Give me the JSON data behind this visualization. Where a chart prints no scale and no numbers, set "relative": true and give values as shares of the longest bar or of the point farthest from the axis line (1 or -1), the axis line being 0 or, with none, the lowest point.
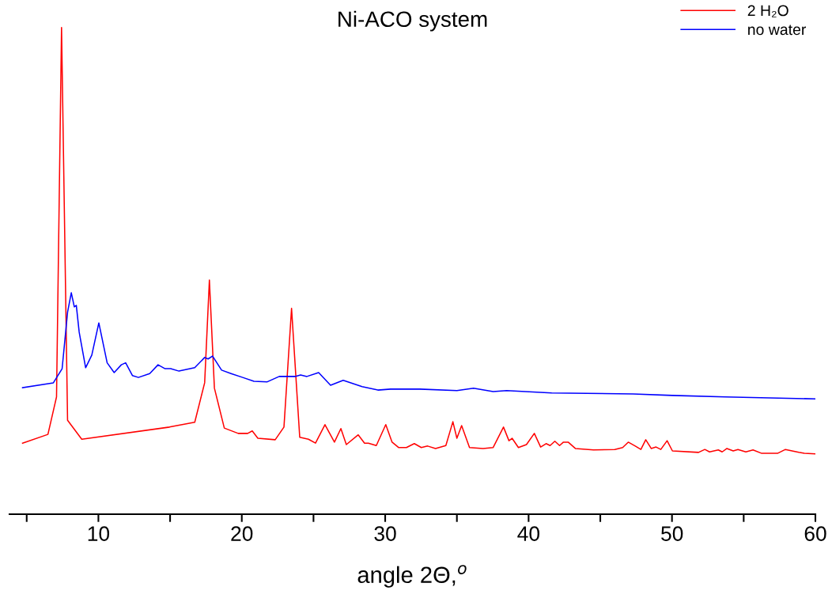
{
  "chart_data": {
    "type": "line",
    "title": "Ni-ACO system",
    "xlabel": "angle 2Θ,$^{o}$",
    "relative": true,
    "legend": "top right",
    "grid": false,
    "tick_labels": "x",
    "xlim": [
      3.8,
      60
    ],
    "xticks": [
      {
        "value": 5,
        "label": null
      },
      10,
      {
        "value": 15,
        "label": null
      },
      20,
      {
        "value": 25,
        "label": null
      },
      30,
      {
        "value": 35,
        "label": null
      },
      40,
      {
        "value": 45,
        "label": null
      },
      50,
      {
        "value": 55,
        "label": null
      },
      60
    ],
    "series": [
      {
        "name": "2 H₂O",
        "color": "#ff0000",
        "x": [
          4.71,
          6.48,
          7.08,
          7.43,
          7.85,
          8.84,
          14.96,
          16.72,
          17.41,
          17.74,
          18.09,
          18.78,
          19.75,
          20.41,
          20.73,
          21.12,
          22.33,
          22.94,
          23.47,
          24.04,
          24.65,
          25.14,
          25.8,
          26.46,
          26.91,
          27.29,
          28.12,
          28.56,
          28.83,
          29.38,
          30.04,
          30.48,
          30.93,
          31.48,
          32.03,
          32.52,
          32.96,
          33.51,
          34.23,
          34.72,
          35.0,
          35.33,
          35.88,
          36.82,
          37.53,
          38.25,
          38.63,
          38.85,
          39.29,
          39.85,
          40.4,
          40.84,
          41.22,
          41.5,
          41.83,
          42.16,
          42.43,
          42.76,
          43.26,
          44.53,
          46.01,
          46.56,
          46.95,
          47.44,
          47.83,
          48.17,
          48.55,
          48.89,
          49.22,
          49.66,
          50.03,
          51.85,
          52.29,
          52.62,
          53.23,
          53.5,
          53.83,
          54.27,
          54.6,
          55.15,
          55.65,
          56.26,
          57.36,
          57.91,
          58.84,
          59.23,
          60
        ],
        "values": [
          0.146,
          0.164,
          0.241,
          1.0,
          0.193,
          0.154,
          0.179,
          0.189,
          0.27,
          0.481,
          0.259,
          0.177,
          0.166,
          0.166,
          0.171,
          0.156,
          0.153,
          0.179,
          0.423,
          0.158,
          0.154,
          0.146,
          0.184,
          0.148,
          0.176,
          0.143,
          0.163,
          0.146,
          0.146,
          0.141,
          0.184,
          0.148,
          0.137,
          0.137,
          0.145,
          0.137,
          0.14,
          0.135,
          0.141,
          0.19,
          0.156,
          0.182,
          0.137,
          0.135,
          0.137,
          0.179,
          0.151,
          0.156,
          0.137,
          0.143,
          0.166,
          0.138,
          0.145,
          0.141,
          0.15,
          0.141,
          0.148,
          0.148,
          0.135,
          0.132,
          0.133,
          0.137,
          0.148,
          0.14,
          0.133,
          0.153,
          0.135,
          0.138,
          0.133,
          0.151,
          0.13,
          0.127,
          0.133,
          0.128,
          0.132,
          0.128,
          0.135,
          0.13,
          0.133,
          0.128,
          0.132,
          0.125,
          0.125,
          0.133,
          0.127,
          0.125,
          0.124
        ]
      },
      {
        "name": "no water",
        "color": "#0000ff",
        "x": [
          4.71,
          6.86,
          7.47,
          7.85,
          8.11,
          8.32,
          8.46,
          8.66,
          9.11,
          9.54,
          10.03,
          10.61,
          11.1,
          11.6,
          11.9,
          12.37,
          12.79,
          13.58,
          14.16,
          14.65,
          15.04,
          15.62,
          16.72,
          17.41,
          17.65,
          17.96,
          18.59,
          19.25,
          20.06,
          20.85,
          21.78,
          22.61,
          23.71,
          24.1,
          24.54,
          25.36,
          26.19,
          27.07,
          28.39,
          29.49,
          30.37,
          32.41,
          35.0,
          36.16,
          37.53,
          38.47,
          41.61,
          47.28,
          50.03,
          53.72,
          60
        ],
        "values": [
          0.26,
          0.27,
          0.299,
          0.415,
          0.455,
          0.426,
          0.429,
          0.374,
          0.301,
          0.327,
          0.393,
          0.311,
          0.291,
          0.307,
          0.311,
          0.285,
          0.281,
          0.289,
          0.307,
          0.299,
          0.299,
          0.294,
          0.301,
          0.322,
          0.319,
          0.325,
          0.296,
          0.289,
          0.281,
          0.273,
          0.272,
          0.283,
          0.283,
          0.286,
          0.283,
          0.291,
          0.265,
          0.275,
          0.262,
          0.255,
          0.257,
          0.257,
          0.254,
          0.259,
          0.252,
          0.254,
          0.249,
          0.247,
          0.244,
          0.241,
          0.237
        ]
      }
    ]
  }
}
